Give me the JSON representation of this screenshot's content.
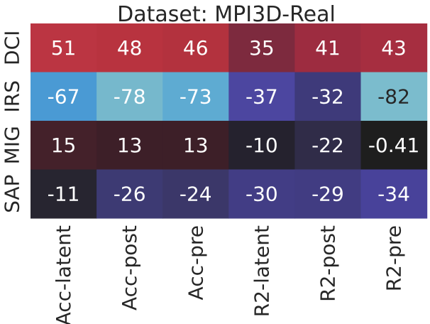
{
  "chart_data": {
    "type": "heatmap",
    "title": "Dataset: MPI3D-Real",
    "xlabel": "",
    "ylabel": "",
    "columns": [
      "Acc-latent",
      "Acc-post",
      "Acc-pre",
      "R2-latent",
      "R2-post",
      "R2-pre"
    ],
    "rows": [
      "DCI",
      "IRS",
      "MIG",
      "SAP"
    ],
    "values": [
      [
        51,
        48,
        46,
        35,
        41,
        43
      ],
      [
        -67,
        -78,
        -73,
        -37,
        -32,
        -82
      ],
      [
        15,
        13,
        13,
        -10,
        -22,
        -0.41
      ],
      [
        -11,
        -26,
        -24,
        -30,
        -29,
        -34
      ]
    ],
    "cell_labels": [
      [
        "51",
        "48",
        "46",
        "35",
        "41",
        "43"
      ],
      [
        "-67",
        "-78",
        "-73",
        "-37",
        "-32",
        "-82"
      ],
      [
        "15",
        "13",
        "13",
        "-10",
        "-22",
        "-0.41"
      ],
      [
        "-11",
        "-26",
        "-24",
        "-30",
        "-29",
        "-34"
      ]
    ],
    "colorbar": false,
    "colormap": "diverging icefire (blue negative, dark center, red positive)",
    "colors": [
      [
        "#bb3542",
        "#b8333f",
        "#b3323e",
        "#7d2a3e",
        "#9d2c40",
        "#a62e40"
      ],
      [
        "#4a9ad4",
        "#76b8cc",
        "#5eabd2",
        "#4c46a0",
        "#3e3a7a",
        "#7bbccd"
      ],
      [
        "#44212a",
        "#3d1f28",
        "#3d1f28",
        "#25222e",
        "#302c48",
        "#1e1e1e"
      ],
      [
        "#272530",
        "#3d3a73",
        "#3b3769",
        "#423d85",
        "#413c82",
        "#48429a"
      ]
    ],
    "text_colors": [
      [
        "#ffffff",
        "#ffffff",
        "#ffffff",
        "#ffffff",
        "#ffffff",
        "#ffffff"
      ],
      [
        "#ffffff",
        "#ffffff",
        "#ffffff",
        "#ffffff",
        "#ffffff",
        "#262626"
      ],
      [
        "#ffffff",
        "#ffffff",
        "#ffffff",
        "#ffffff",
        "#ffffff",
        "#ffffff"
      ],
      [
        "#ffffff",
        "#ffffff",
        "#ffffff",
        "#ffffff",
        "#ffffff",
        "#ffffff"
      ]
    ]
  }
}
